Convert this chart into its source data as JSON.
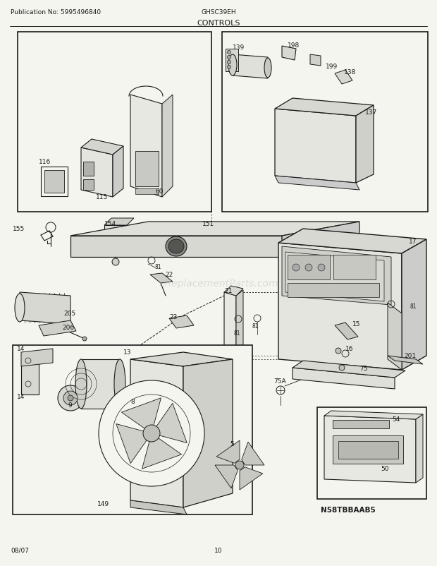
{
  "title": "CONTROLS",
  "pub_no": "Publication No: 5995496840",
  "model": "GHSC39EH",
  "date": "08/07",
  "page": "10",
  "bg_color": "#f5f5f0",
  "line_color": "#1a1a1a",
  "watermark": "eReplacementParts.com",
  "ref_label": "N58TBBAAB5",
  "fig_w": 620,
  "fig_h": 803
}
